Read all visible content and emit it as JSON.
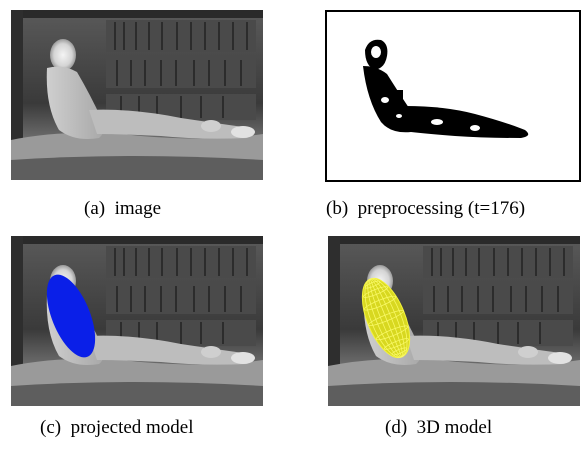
{
  "figure": {
    "panels": [
      {
        "id": "a",
        "label": "(a)",
        "caption": "image"
      },
      {
        "id": "b",
        "label": "(b)",
        "caption": "preprocessing (t=176)"
      },
      {
        "id": "c",
        "label": "(c)",
        "caption": "projected model"
      },
      {
        "id": "d",
        "label": "(d)",
        "caption": "3D model"
      }
    ],
    "colors": {
      "thermal_dark": "#1c1c1c",
      "thermal_mid": "#6e6e6e",
      "thermal_bright": "#e8e8e8",
      "mask": "#000000",
      "projected_model": "#0a1fe8",
      "model_3d": "#e6e62a"
    }
  }
}
